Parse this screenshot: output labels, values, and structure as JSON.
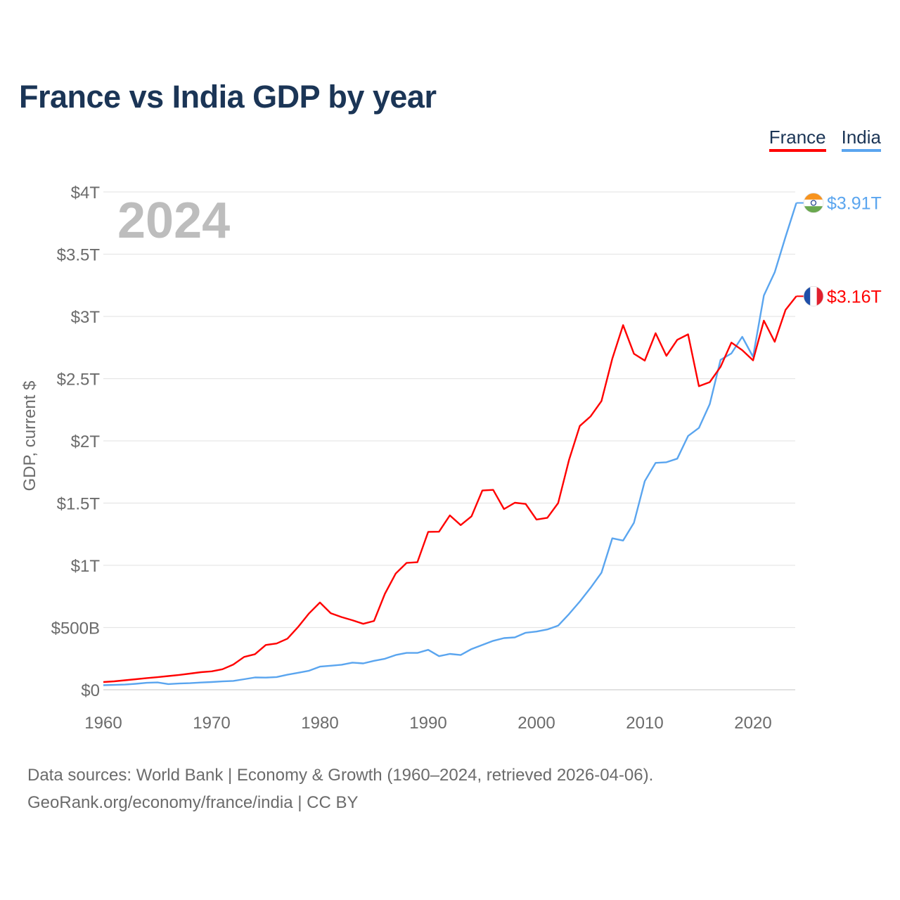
{
  "chart_data": {
    "type": "line",
    "title": "France vs India GDP by year",
    "ylabel": "GDP, current $",
    "xlabel": "",
    "ylim": [
      0,
      4
    ],
    "xlim": [
      1960,
      2024
    ],
    "highlight_year": "2024",
    "legend": {
      "placement": "top-right",
      "entries": [
        "France",
        "India"
      ]
    },
    "y_ticks": [
      {
        "v": 0,
        "label": "$0"
      },
      {
        "v": 0.5,
        "label": "$500B"
      },
      {
        "v": 1,
        "label": "$1T"
      },
      {
        "v": 1.5,
        "label": "$1.5T"
      },
      {
        "v": 2,
        "label": "$2T"
      },
      {
        "v": 2.5,
        "label": "$2.5T"
      },
      {
        "v": 3,
        "label": "$3T"
      },
      {
        "v": 3.5,
        "label": "$3.5T"
      },
      {
        "v": 4,
        "label": "$4T"
      }
    ],
    "x_ticks": [
      "1960",
      "1970",
      "1980",
      "1990",
      "2000",
      "2010",
      "2020"
    ],
    "x_start": 1960,
    "units": "trillion USD",
    "series": [
      {
        "name": "France",
        "color": "#ff0000",
        "end_label": "$3.16T",
        "flag": "france-flag",
        "values": [
          0.062,
          0.068,
          0.076,
          0.085,
          0.094,
          0.101,
          0.11,
          0.119,
          0.13,
          0.141,
          0.148,
          0.165,
          0.203,
          0.264,
          0.286,
          0.36,
          0.372,
          0.411,
          0.506,
          0.614,
          0.701,
          0.615,
          0.584,
          0.559,
          0.53,
          0.553,
          0.771,
          0.934,
          1.019,
          1.025,
          1.269,
          1.27,
          1.401,
          1.323,
          1.394,
          1.601,
          1.606,
          1.452,
          1.503,
          1.493,
          1.368,
          1.382,
          1.5,
          1.845,
          2.12,
          2.197,
          2.32,
          2.66,
          2.93,
          2.7,
          2.645,
          2.865,
          2.683,
          2.812,
          2.856,
          2.439,
          2.472,
          2.595,
          2.79,
          2.729,
          2.647,
          2.966,
          2.796,
          3.052,
          3.162
        ]
      },
      {
        "name": "India",
        "color": "#5aa5ef",
        "end_label": "$3.91T",
        "flag": "india-flag",
        "values": [
          0.037,
          0.039,
          0.042,
          0.048,
          0.056,
          0.059,
          0.046,
          0.05,
          0.053,
          0.058,
          0.062,
          0.067,
          0.071,
          0.085,
          0.099,
          0.098,
          0.102,
          0.121,
          0.137,
          0.153,
          0.186,
          0.193,
          0.201,
          0.218,
          0.212,
          0.233,
          0.249,
          0.279,
          0.296,
          0.296,
          0.321,
          0.27,
          0.288,
          0.279,
          0.327,
          0.36,
          0.393,
          0.415,
          0.421,
          0.458,
          0.468,
          0.485,
          0.515,
          0.608,
          0.709,
          0.82,
          0.94,
          1.217,
          1.199,
          1.342,
          1.676,
          1.823,
          1.828,
          1.857,
          2.039,
          2.104,
          2.295,
          2.651,
          2.703,
          2.836,
          2.675,
          3.168,
          3.354,
          3.639,
          3.912
        ]
      }
    ]
  },
  "footer": {
    "line1": "Data sources: World Bank | Economy & Growth (1960–2024, retrieved 2026-04-06).",
    "line2": "GeoRank.org/economy/france/india | CC BY"
  }
}
